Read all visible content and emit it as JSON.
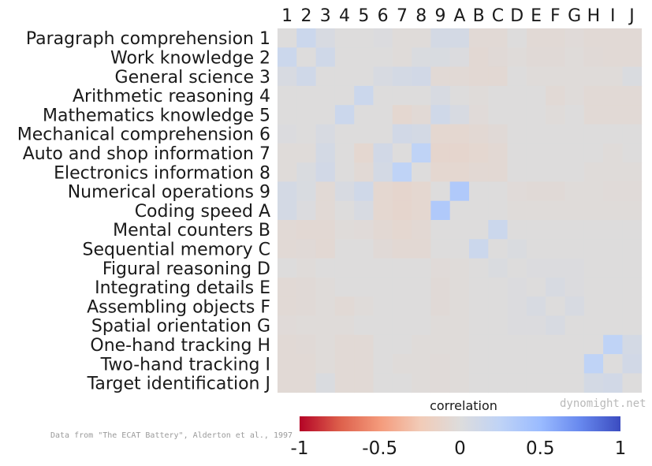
{
  "chart_data": {
    "type": "heatmap",
    "row_labels": [
      "Paragraph comprehension",
      "Work knowledge",
      "General science",
      "Arithmetic reasoning",
      "Mathematics knowledge",
      "Mechanical comprehension",
      "Auto and shop information",
      "Electronics information",
      "Numerical operations",
      "Coding speed",
      "Mental counters",
      "Sequential memory",
      "Figural reasoning",
      "Integrating details",
      "Assembling objects",
      "Spatial orientation",
      "One-hand tracking",
      "Two-hand tracking",
      "Target identification"
    ],
    "codes": [
      "1",
      "2",
      "3",
      "4",
      "5",
      "6",
      "7",
      "8",
      "9",
      "A",
      "B",
      "C",
      "D",
      "E",
      "F",
      "G",
      "H",
      "I",
      "J"
    ],
    "colorbar": {
      "label": "correlation",
      "ticks": [
        "-1",
        "-0.5",
        "0",
        "0.5",
        "1"
      ],
      "range": [
        -1,
        1
      ],
      "colormap": "coolwarm"
    },
    "values": [
      [
        0.0,
        0.15,
        0.05,
        0.0,
        0.0,
        0.02,
        -0.02,
        -0.02,
        0.08,
        0.08,
        -0.05,
        -0.05,
        0.0,
        -0.05,
        -0.05,
        -0.03,
        -0.05,
        -0.05,
        -0.05
      ],
      [
        0.15,
        0.0,
        0.12,
        0.0,
        0.0,
        0.0,
        -0.02,
        0.03,
        0.04,
        0.02,
        -0.06,
        -0.04,
        -0.02,
        -0.04,
        -0.04,
        -0.02,
        -0.04,
        -0.05,
        -0.05
      ],
      [
        0.05,
        0.12,
        0.0,
        0.0,
        0.0,
        0.05,
        0.08,
        0.1,
        -0.05,
        -0.05,
        -0.06,
        -0.06,
        0.0,
        -0.02,
        -0.02,
        -0.02,
        -0.02,
        -0.02,
        0.03
      ],
      [
        0.0,
        0.0,
        0.0,
        0.0,
        0.15,
        0.0,
        0.0,
        0.0,
        0.05,
        0.0,
        -0.02,
        0.0,
        0.0,
        0.0,
        -0.05,
        -0.02,
        -0.05,
        -0.05,
        -0.05
      ],
      [
        0.0,
        0.0,
        0.0,
        0.15,
        0.0,
        0.0,
        -0.08,
        -0.05,
        0.12,
        0.05,
        -0.03,
        0.0,
        0.0,
        0.0,
        -0.02,
        0.0,
        -0.05,
        -0.05,
        -0.05
      ],
      [
        0.02,
        0.0,
        0.05,
        0.0,
        0.0,
        0.0,
        0.1,
        0.08,
        -0.08,
        -0.08,
        -0.06,
        -0.04,
        0.0,
        0.0,
        0.0,
        0.0,
        0.0,
        0.0,
        0.0
      ],
      [
        -0.02,
        -0.02,
        0.08,
        0.0,
        -0.08,
        0.1,
        0.0,
        0.25,
        -0.1,
        -0.1,
        -0.08,
        -0.06,
        0.0,
        0.0,
        0.0,
        0.0,
        0.0,
        -0.02,
        0.0
      ],
      [
        -0.02,
        0.03,
        0.1,
        0.0,
        -0.05,
        0.08,
        0.25,
        0.0,
        -0.08,
        -0.08,
        -0.06,
        -0.06,
        0.0,
        0.0,
        0.0,
        0.0,
        -0.02,
        -0.02,
        -0.02
      ],
      [
        0.08,
        0.04,
        -0.05,
        0.05,
        0.12,
        -0.08,
        -0.1,
        -0.08,
        0.0,
        0.35,
        0.0,
        0.0,
        -0.03,
        -0.04,
        -0.04,
        -0.02,
        -0.02,
        -0.03,
        -0.03
      ],
      [
        0.08,
        0.02,
        -0.05,
        0.0,
        0.05,
        -0.08,
        -0.1,
        -0.08,
        0.35,
        0.0,
        0.0,
        0.0,
        -0.02,
        -0.02,
        -0.02,
        -0.02,
        -0.02,
        -0.02,
        -0.02
      ],
      [
        -0.05,
        -0.06,
        -0.06,
        -0.02,
        -0.03,
        -0.06,
        -0.08,
        -0.06,
        0.0,
        0.0,
        0.0,
        0.15,
        0.0,
        0.0,
        0.0,
        0.0,
        0.0,
        0.0,
        0.0
      ],
      [
        -0.05,
        -0.04,
        -0.06,
        0.0,
        0.0,
        -0.04,
        -0.06,
        -0.06,
        0.0,
        0.0,
        0.15,
        0.0,
        0.03,
        0.0,
        0.0,
        0.0,
        0.0,
        0.0,
        0.0
      ],
      [
        0.0,
        -0.02,
        0.0,
        0.0,
        0.0,
        0.0,
        0.0,
        0.0,
        -0.03,
        -0.02,
        0.0,
        0.03,
        0.0,
        0.02,
        0.02,
        0.02,
        0.0,
        0.0,
        0.0
      ],
      [
        -0.05,
        -0.04,
        -0.02,
        0.0,
        0.0,
        0.0,
        0.0,
        0.0,
        -0.04,
        -0.02,
        0.0,
        0.0,
        0.02,
        0.0,
        0.05,
        0.02,
        0.0,
        0.0,
        0.0
      ],
      [
        -0.05,
        -0.04,
        -0.02,
        -0.05,
        -0.02,
        0.0,
        0.0,
        0.0,
        -0.04,
        -0.02,
        0.0,
        0.0,
        0.02,
        0.05,
        0.0,
        0.05,
        0.0,
        0.0,
        0.0
      ],
      [
        -0.03,
        -0.02,
        -0.02,
        -0.02,
        0.0,
        0.0,
        0.0,
        0.0,
        -0.02,
        -0.02,
        0.0,
        0.0,
        0.02,
        0.02,
        0.05,
        0.0,
        0.0,
        0.0,
        0.0
      ],
      [
        -0.05,
        -0.04,
        -0.02,
        -0.05,
        -0.05,
        0.0,
        0.0,
        -0.02,
        -0.02,
        -0.02,
        0.0,
        0.0,
        0.0,
        0.0,
        0.0,
        0.0,
        0.0,
        0.25,
        0.08
      ],
      [
        -0.05,
        -0.05,
        -0.02,
        -0.05,
        -0.05,
        0.0,
        -0.02,
        -0.02,
        -0.03,
        -0.02,
        0.0,
        0.0,
        0.0,
        0.0,
        0.0,
        0.0,
        0.25,
        0.0,
        0.1
      ],
      [
        -0.05,
        -0.05,
        0.03,
        -0.05,
        -0.05,
        0.0,
        0.0,
        -0.02,
        -0.03,
        -0.02,
        0.0,
        0.0,
        0.0,
        0.0,
        0.0,
        0.0,
        0.08,
        0.1,
        0.0
      ]
    ]
  },
  "source_note": "Data from \"The ECAT Battery\", Alderton et al., 1997",
  "watermark": "dynomight.net"
}
